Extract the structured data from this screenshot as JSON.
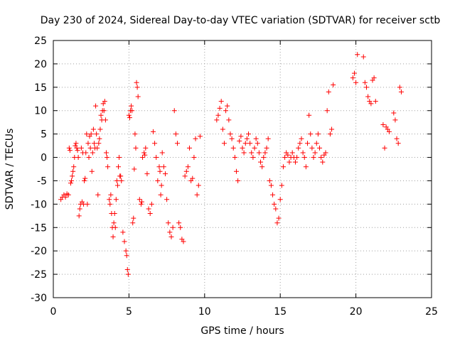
{
  "chart_data": {
    "type": "scatter",
    "title": "Day 230 of 2024, Sidereal Day-to-day VTEC variation (SDTVAR) for receiver sctb",
    "xlabel": "GPS time / hours",
    "ylabel": "SDTVAR / TECUs",
    "xlim": [
      0,
      25
    ],
    "ylim": [
      -30,
      25
    ],
    "x_ticks": [
      "0",
      "5",
      "10",
      "15",
      "20",
      "25"
    ],
    "y_ticks": [
      "-30",
      "-25",
      "-20",
      "-15",
      "-10",
      "-5",
      "0",
      "5",
      "10",
      "15",
      "20",
      "25"
    ],
    "grid": true,
    "marker": "+",
    "color": "#ff0000",
    "series": [
      {
        "name": "sctb",
        "x": [
          0.5,
          0.6,
          0.7,
          0.8,
          0.9,
          1.0,
          1.05,
          1.1,
          1.15,
          1.2,
          1.25,
          1.3,
          1.35,
          1.4,
          1.45,
          1.5,
          1.55,
          1.6,
          1.65,
          1.7,
          1.75,
          1.8,
          1.85,
          1.9,
          1.95,
          2.0,
          2.05,
          2.1,
          2.15,
          2.2,
          2.25,
          2.3,
          2.35,
          2.4,
          2.45,
          2.5,
          2.55,
          2.6,
          2.65,
          2.7,
          2.75,
          2.8,
          2.85,
          2.9,
          2.95,
          3.0,
          3.05,
          3.1,
          3.15,
          3.2,
          3.25,
          3.3,
          3.35,
          3.4,
          3.45,
          3.5,
          3.55,
          3.6,
          3.7,
          3.75,
          3.8,
          3.85,
          3.9,
          3.95,
          4.0,
          4.05,
          4.1,
          4.15,
          4.2,
          4.25,
          4.3,
          4.35,
          4.4,
          4.45,
          4.5,
          4.6,
          4.7,
          4.8,
          4.85,
          4.9,
          4.95,
          5.0,
          5.05,
          5.1,
          5.15,
          5.2,
          5.25,
          5.3,
          5.35,
          5.4,
          5.45,
          5.5,
          5.55,
          5.6,
          5.7,
          5.8,
          5.85,
          5.9,
          6.0,
          6.05,
          6.1,
          6.2,
          6.3,
          6.4,
          6.5,
          6.6,
          6.7,
          6.8,
          6.9,
          7.0,
          7.05,
          7.1,
          7.15,
          7.2,
          7.3,
          7.4,
          7.5,
          7.6,
          7.7,
          7.8,
          7.9,
          8.0,
          8.1,
          8.2,
          8.3,
          8.4,
          8.5,
          8.6,
          8.7,
          8.8,
          8.9,
          9.0,
          9.1,
          9.2,
          9.3,
          9.4,
          9.5,
          9.6,
          9.7,
          10.8,
          10.9,
          11.0,
          11.1,
          11.2,
          11.3,
          11.4,
          11.5,
          11.6,
          11.7,
          11.8,
          11.9,
          12.0,
          12.1,
          12.2,
          12.3,
          12.4,
          12.5,
          12.6,
          12.7,
          12.8,
          12.9,
          13.0,
          13.1,
          13.2,
          13.3,
          13.4,
          13.5,
          13.6,
          13.7,
          13.8,
          13.9,
          14.0,
          14.1,
          14.2,
          14.3,
          14.4,
          14.5,
          14.6,
          14.7,
          14.8,
          14.9,
          15.0,
          15.1,
          15.2,
          15.3,
          15.4,
          15.5,
          15.6,
          15.7,
          15.8,
          15.9,
          16.0,
          16.1,
          16.2,
          16.3,
          16.4,
          16.5,
          16.6,
          16.7,
          16.8,
          16.9,
          17.0,
          17.1,
          17.2,
          17.3,
          17.4,
          17.5,
          17.6,
          17.7,
          17.8,
          17.9,
          18.0,
          18.1,
          18.2,
          18.3,
          18.4,
          18.5,
          19.8,
          19.9,
          20.0,
          20.1,
          20.5,
          20.6,
          20.7,
          20.8,
          20.9,
          21.0,
          21.1,
          21.2,
          21.3,
          21.8,
          21.9,
          22.0,
          22.1,
          22.2,
          22.5,
          22.6,
          22.7,
          22.8,
          22.9,
          23.0
        ],
        "y": [
          -9,
          -8.5,
          -8,
          -8.5,
          -7.8,
          -8,
          2,
          1.5,
          -5.5,
          -5,
          -4,
          -3,
          -2,
          0,
          2.5,
          3,
          2,
          1.5,
          0,
          -12.5,
          -11,
          -10,
          2,
          -9.5,
          1,
          -10,
          -5,
          -4.5,
          1,
          5,
          -10,
          3,
          0,
          4.5,
          2,
          5,
          -3,
          1,
          6,
          3,
          2,
          11,
          5,
          2,
          -8,
          3,
          4,
          6,
          9,
          8,
          10,
          11.5,
          10,
          12,
          8,
          1,
          0,
          -2,
          -9,
          -10,
          -8,
          -12,
          -15,
          -17,
          -14,
          -12,
          -15,
          -9,
          -5,
          -6,
          -2,
          0,
          -4,
          -4,
          -5,
          -16,
          -18,
          -20,
          -21,
          -24,
          -25,
          9,
          8.5,
          10,
          11,
          10,
          -14,
          -13,
          -2.5,
          5,
          2,
          16,
          15,
          13,
          -9,
          -10,
          -9.5,
          0,
          1,
          0.5,
          2,
          -3.5,
          -11,
          -12,
          -10,
          5.5,
          3,
          0,
          -5,
          -2,
          -3,
          -8,
          -6,
          1,
          -2,
          -3.5,
          -9,
          -14,
          -16,
          -17,
          -15,
          10,
          5,
          3,
          -14,
          -15,
          -17.5,
          -18,
          -4,
          -3,
          -2,
          2,
          -5,
          -4.5,
          0,
          4,
          -8,
          -6,
          4.5,
          8,
          9,
          10.5,
          12,
          6,
          3,
          10,
          11,
          8,
          5,
          4,
          2,
          0,
          -3,
          -5,
          3.5,
          4.5,
          2,
          1,
          3,
          4,
          5,
          3,
          1,
          0,
          2,
          4,
          3,
          1,
          -1,
          -2,
          0,
          1,
          2,
          4,
          -5,
          -6,
          -8,
          -10,
          -11,
          -14,
          -13,
          -9,
          -6,
          -2,
          0,
          1,
          0.5,
          -1,
          0,
          1,
          0,
          -1,
          0,
          2,
          3,
          4,
          1,
          0,
          -2,
          3,
          9,
          5,
          2,
          0,
          1,
          3,
          5,
          2,
          0,
          -1,
          0.5,
          1,
          10,
          14,
          5,
          6,
          15.5,
          17,
          18,
          16,
          22,
          21.5,
          16,
          15,
          13,
          12,
          11.5,
          16.5,
          17,
          12,
          7,
          2,
          6.5,
          6,
          5.5,
          9.5,
          8,
          4,
          3,
          15,
          14
        ]
      }
    ]
  }
}
